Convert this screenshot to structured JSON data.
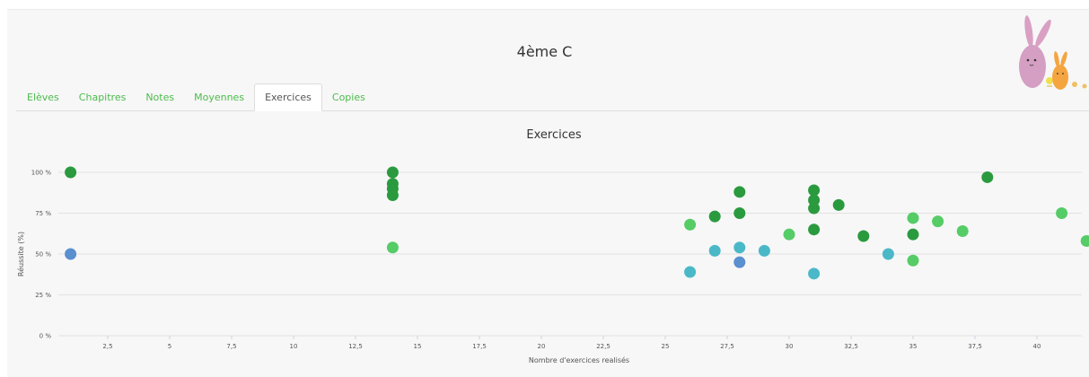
{
  "header": {
    "class_title": "4ème C"
  },
  "tabs": [
    {
      "label": "Elèves",
      "active": false
    },
    {
      "label": "Chapitres",
      "active": false
    },
    {
      "label": "Notes",
      "active": false
    },
    {
      "label": "Moyennes",
      "active": false
    },
    {
      "label": "Exercices",
      "active": true
    },
    {
      "label": "Copies",
      "active": false
    }
  ],
  "colors": {
    "tab_link": "#4cbb4c",
    "dark_green": "#2a9a3e",
    "light_green": "#55cc66",
    "teal": "#4bb8c8",
    "blue": "#5a8fd0"
  },
  "chart_data": {
    "type": "scatter",
    "title": "Exercices",
    "xlabel": "Nombre d'exercices realisés",
    "ylabel": "Réussite (%)",
    "xlim": [
      0,
      41.5
    ],
    "ylim": [
      0,
      100
    ],
    "x_ticks": [
      "2,5",
      "5",
      "7,5",
      "10",
      "12,5",
      "15",
      "17,5",
      "20",
      "22,5",
      "25",
      "27,5",
      "30",
      "32,5",
      "35",
      "37,5",
      "40"
    ],
    "y_ticks": [
      "0 %",
      "25 %",
      "50 %",
      "75 %",
      "100 %"
    ],
    "grid": true,
    "points": [
      {
        "x": 1,
        "y": 100,
        "color": "dark_green"
      },
      {
        "x": 1,
        "y": 50,
        "color": "blue"
      },
      {
        "x": 14,
        "y": 100,
        "color": "dark_green"
      },
      {
        "x": 14,
        "y": 93,
        "color": "dark_green"
      },
      {
        "x": 14,
        "y": 90,
        "color": "dark_green"
      },
      {
        "x": 14,
        "y": 86,
        "color": "dark_green"
      },
      {
        "x": 14,
        "y": 54,
        "color": "light_green"
      },
      {
        "x": 26,
        "y": 68,
        "color": "light_green"
      },
      {
        "x": 26,
        "y": 39,
        "color": "teal"
      },
      {
        "x": 27,
        "y": 73,
        "color": "dark_green"
      },
      {
        "x": 27,
        "y": 52,
        "color": "teal"
      },
      {
        "x": 28,
        "y": 88,
        "color": "dark_green"
      },
      {
        "x": 28,
        "y": 75,
        "color": "dark_green"
      },
      {
        "x": 28,
        "y": 54,
        "color": "teal"
      },
      {
        "x": 28,
        "y": 45,
        "color": "blue"
      },
      {
        "x": 29,
        "y": 52,
        "color": "teal"
      },
      {
        "x": 30,
        "y": 62,
        "color": "light_green"
      },
      {
        "x": 31,
        "y": 89,
        "color": "dark_green"
      },
      {
        "x": 31,
        "y": 83,
        "color": "dark_green"
      },
      {
        "x": 31,
        "y": 78,
        "color": "dark_green"
      },
      {
        "x": 31,
        "y": 65,
        "color": "dark_green"
      },
      {
        "x": 31,
        "y": 38,
        "color": "teal"
      },
      {
        "x": 32,
        "y": 80,
        "color": "dark_green"
      },
      {
        "x": 33,
        "y": 61,
        "color": "dark_green"
      },
      {
        "x": 34,
        "y": 50,
        "color": "teal"
      },
      {
        "x": 35,
        "y": 72,
        "color": "light_green"
      },
      {
        "x": 35,
        "y": 62,
        "color": "dark_green"
      },
      {
        "x": 35,
        "y": 46,
        "color": "light_green"
      },
      {
        "x": 36,
        "y": 70,
        "color": "light_green"
      },
      {
        "x": 37,
        "y": 64,
        "color": "light_green"
      },
      {
        "x": 38,
        "y": 97,
        "color": "dark_green"
      },
      {
        "x": 41,
        "y": 75,
        "color": "light_green"
      },
      {
        "x": 42,
        "y": 58,
        "color": "light_green"
      }
    ]
  }
}
